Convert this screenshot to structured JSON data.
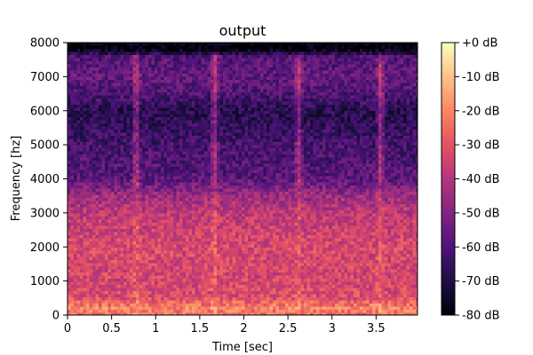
{
  "chart_data": {
    "type": "heatmap",
    "title": "output",
    "xlabel": "Time [sec]",
    "ylabel": "Frequency [hz]",
    "xlim": [
      0,
      3.97
    ],
    "ylim": [
      0,
      8000
    ],
    "x_ticks": [
      0,
      0.5,
      1,
      1.5,
      2,
      2.5,
      3,
      3.5
    ],
    "x_tick_labels": [
      "0",
      "0.5",
      "1",
      "1.5",
      "2",
      "2.5",
      "3",
      "3.5"
    ],
    "y_ticks": [
      0,
      1000,
      2000,
      3000,
      4000,
      5000,
      6000,
      7000,
      8000
    ],
    "y_tick_labels": [
      "0",
      "1000",
      "2000",
      "3000",
      "4000",
      "5000",
      "6000",
      "7000",
      "8000"
    ],
    "colorbar": {
      "colormap": "magma",
      "range": [
        -80,
        0
      ],
      "ticks": [
        0,
        -10,
        -20,
        -30,
        -40,
        -50,
        -60,
        -70,
        -80
      ],
      "tick_labels": [
        "+0 dB",
        "-10 dB",
        "-20 dB",
        "-30 dB",
        "-40 dB",
        "-50 dB",
        "-60 dB",
        "-70 dB",
        "-80 dB"
      ]
    },
    "intensity_profile_db": [
      {
        "freq": 0,
        "level": -25
      },
      {
        "freq": 200,
        "level": -20
      },
      {
        "freq": 500,
        "level": -32
      },
      {
        "freq": 1000,
        "level": -34
      },
      {
        "freq": 2000,
        "level": -33
      },
      {
        "freq": 3000,
        "level": -38
      },
      {
        "freq": 3500,
        "level": -45
      },
      {
        "freq": 4000,
        "level": -58
      },
      {
        "freq": 5000,
        "level": -62
      },
      {
        "freq": 6000,
        "level": -68
      },
      {
        "freq": 6500,
        "level": -60
      },
      {
        "freq": 7000,
        "level": -56
      },
      {
        "freq": 7600,
        "level": -60
      },
      {
        "freq": 7800,
        "level": -80
      },
      {
        "freq": 8000,
        "level": -80
      }
    ],
    "transient_times_sec": [
      0.78,
      1.67,
      2.62,
      3.55
    ]
  }
}
